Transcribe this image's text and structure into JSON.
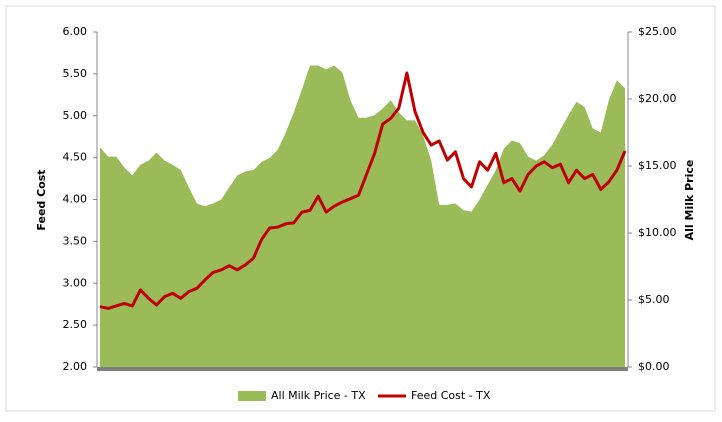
{
  "chart_data": {
    "type": "area_line",
    "y_label": "Feed Cost",
    "y2_label": "All Milk Price",
    "categories": [
      null,
      null,
      null,
      null,
      null,
      null,
      null,
      null,
      null,
      null,
      null,
      null,
      null,
      null,
      null,
      null,
      null,
      null,
      null,
      null,
      null,
      null,
      null,
      null,
      null,
      null,
      null,
      null,
      null,
      null,
      null,
      null,
      null,
      null,
      null,
      null,
      null,
      null,
      null,
      null,
      null,
      null,
      null,
      null,
      null,
      null,
      null,
      null,
      null,
      null,
      null,
      null,
      null,
      null,
      null,
      null,
      null,
      null,
      null,
      null,
      null,
      null,
      null,
      null,
      null,
      null
    ],
    "ylim": [
      2,
      6
    ],
    "yticks": [
      {
        "value": 2,
        "label": "2.00"
      },
      {
        "value": 2.5,
        "label": "2.50"
      },
      {
        "value": 3,
        "label": "3.00"
      },
      {
        "value": 3.5,
        "label": "3.50"
      },
      {
        "value": 4,
        "label": "4.00"
      },
      {
        "value": 4.5,
        "label": "4.50"
      },
      {
        "value": 5,
        "label": "5.00"
      },
      {
        "value": 5.5,
        "label": "5.50"
      },
      {
        "value": 6,
        "label": "6.00"
      }
    ],
    "y2lim": [
      0,
      25
    ],
    "y2ticks": [
      {
        "value": 0,
        "label": "$0.00"
      },
      {
        "value": 5,
        "label": "$5.00"
      },
      {
        "value": 10,
        "label": "$10.00"
      },
      {
        "value": 15,
        "label": "$15.00"
      },
      {
        "value": 20,
        "label": "$20.00"
      },
      {
        "value": 25,
        "label": "$25.00"
      }
    ],
    "legend": "bottom",
    "series": [
      {
        "name": "All Milk Price - TX",
        "color": "#9bbb59",
        "axis": "y2",
        "kind": "area",
        "values": [
          16.4,
          15.7,
          15.7,
          14.9,
          14.3,
          15.1,
          15.4,
          16.0,
          15.4,
          15.1,
          14.7,
          13.4,
          12.2,
          12.0,
          12.2,
          12.5,
          13.4,
          14.3,
          14.6,
          14.7,
          15.3,
          15.6,
          16.2,
          17.5,
          19.0,
          20.7,
          22.5,
          22.5,
          22.2,
          22.5,
          22.0,
          19.9,
          18.6,
          18.6,
          18.8,
          19.3,
          19.9,
          19.0,
          18.4,
          18.4,
          17.3,
          15.4,
          12.1,
          12.1,
          12.2,
          11.7,
          11.6,
          12.5,
          13.6,
          14.7,
          16.3,
          16.9,
          16.7,
          15.7,
          15.4,
          15.8,
          16.6,
          17.7,
          18.8,
          19.8,
          19.4,
          17.8,
          17.5,
          19.9,
          21.4,
          20.8
        ]
      },
      {
        "name": "Feed Cost - TX",
        "color": "#c00000",
        "kind": "line",
        "values": [
          2.72,
          2.7,
          2.73,
          2.76,
          2.73,
          2.92,
          2.82,
          2.74,
          2.84,
          2.88,
          2.82,
          2.9,
          2.94,
          3.04,
          3.13,
          3.16,
          3.21,
          3.16,
          3.22,
          3.3,
          3.52,
          3.66,
          3.67,
          3.71,
          3.72,
          3.85,
          3.87,
          4.04,
          3.85,
          3.92,
          3.97,
          4.01,
          4.05,
          4.3,
          4.55,
          4.9,
          4.97,
          5.09,
          5.51,
          5.05,
          4.8,
          4.65,
          4.7,
          4.47,
          4.57,
          4.25,
          4.15,
          4.45,
          4.35,
          4.55,
          4.2,
          4.25,
          4.1,
          4.3,
          4.4,
          4.45,
          4.38,
          4.42,
          4.2,
          4.35,
          4.25,
          4.3,
          4.12,
          4.21,
          4.35,
          4.58
        ]
      }
    ]
  }
}
